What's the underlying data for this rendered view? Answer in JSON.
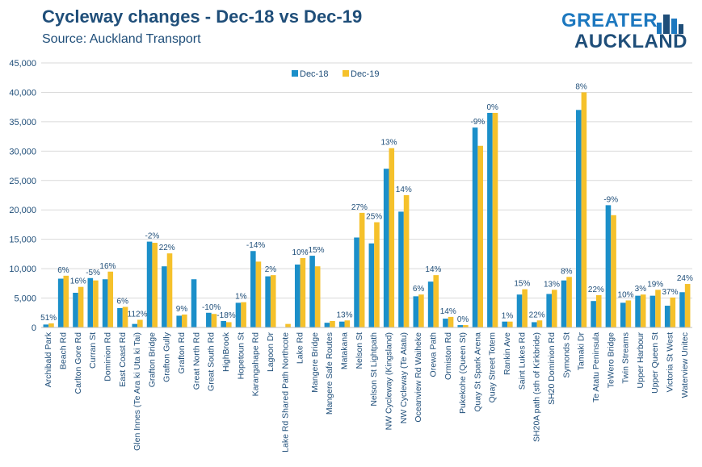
{
  "header": {
    "title": "Cycleway changes - Dec-18 vs Dec-19",
    "subtitle": "Source: Auckland Transport"
  },
  "logo": {
    "line1": "GREATER",
    "line2": "AUCKLAND",
    "primary_color": "#1d78bf",
    "secondary_color": "#1f4e79"
  },
  "chart_data": {
    "type": "bar",
    "title": "Cycleway changes - Dec-18 vs Dec-19",
    "subtitle": "Source: Auckland Transport",
    "xlabel": "",
    "ylabel": "",
    "ylim": [
      0,
      45000
    ],
    "yticks": [
      "0",
      "5,000",
      "10,000",
      "15,000",
      "20,000",
      "25,000",
      "30,000",
      "35,000",
      "40,000",
      "45,000"
    ],
    "ytick_values": [
      0,
      5000,
      10000,
      15000,
      20000,
      25000,
      30000,
      35000,
      40000,
      45000
    ],
    "grid": true,
    "legend_position": "top-center",
    "categories": [
      "Archibald Park",
      "Beach Rd",
      "Carlton Gore Rd",
      "Curran St",
      "Dominion Rd",
      "East Coast Rd",
      "Glen Innes (Te Ara ki Uta ki Tai)",
      "Grafton Bridge",
      "Grafton Gully",
      "Grafton Rd",
      "Great North Rd",
      "Great South Rd",
      "HighBrook",
      "Hopetoun St",
      "Karangahape Rd",
      "Lagoon Dr",
      "Lake Rd Shared Path Northcote",
      "Lake Rd",
      "Mangere Bridge",
      "Mangere Safe Routes",
      "Matakana",
      "Nelson St",
      "Nelson St Lightpath",
      "NW Cycleway (Kingsland)",
      "NW Cycleway (Te Atatu)",
      "Oceanview Rd Waiheke",
      "Orewa Path",
      "Ormiston Rd",
      "Pukekohe (Queen St)",
      "Quay St Spark Arena",
      "Quay Street Totem",
      "Rankin Ave",
      "Saint Lukes Rd",
      "SH20A path (sth of Kirkbride)",
      "SH20 Dominion Rd",
      "Symonds St",
      "Tamaki Dr",
      "Te Atatu Peninsula",
      "TeWero Bridge",
      "Twin Streams",
      "Upper Harbour",
      "Upper Queen St",
      "Victoria St West",
      "Waterview Unitec"
    ],
    "series": [
      {
        "name": "Dec-18",
        "color": "#1b8fc9",
        "values": [
          500,
          8300,
          5900,
          8400,
          8200,
          3300,
          600,
          14600,
          10400,
          2000,
          8200,
          2500,
          1100,
          4200,
          13000,
          8700,
          0,
          10700,
          12200,
          800,
          1000,
          15300,
          14300,
          27000,
          19700,
          5300,
          7800,
          1500,
          400,
          34000,
          36500,
          1000,
          5600,
          900,
          5700,
          8000,
          37000,
          4500,
          20800,
          4200,
          5400,
          5400,
          3700,
          6000
        ]
      },
      {
        "name": "Dec-19",
        "color": "#f5c12b",
        "values": [
          700,
          8800,
          6900,
          8000,
          9500,
          3500,
          1300,
          14400,
          12600,
          2200,
          0,
          2300,
          900,
          4300,
          11200,
          8900,
          600,
          11800,
          10400,
          1100,
          1200,
          19500,
          17900,
          30500,
          22500,
          5600,
          8900,
          1800,
          400,
          30900,
          36500,
          1000,
          6500,
          1200,
          6400,
          8600,
          40000,
          5500,
          19100,
          4600,
          5600,
          6400,
          5100,
          7400
        ]
      }
    ],
    "annotations": [
      "51%",
      "6%",
      "16%",
      "-5%",
      "16%",
      "6%",
      "112%",
      "-2%",
      "22%",
      "9%",
      "",
      "-10%",
      "-18%",
      "1%",
      "-14%",
      "2%",
      "",
      "10%",
      "-15%",
      "",
      "13%",
      "27%",
      "25%",
      "13%",
      "14%",
      "6%",
      "14%",
      "14%",
      "0%",
      "-9%",
      "0%",
      "1%",
      "15%",
      "22%",
      "13%",
      "8%",
      "8%",
      "22%",
      "-9%",
      "10%",
      "3%",
      "19%",
      "37%",
      "24%"
    ],
    "annotation_color": "#1f4e79"
  }
}
